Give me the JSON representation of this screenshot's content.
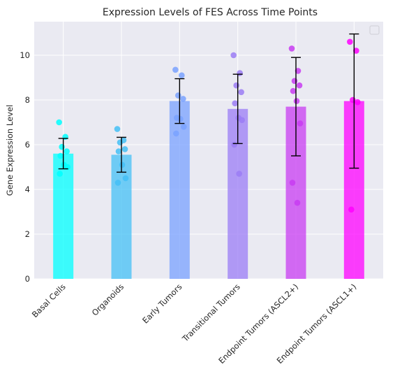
{
  "chart_data": {
    "type": "bar",
    "title": "Expression Levels of FES Across Time Points",
    "xlabel": "",
    "ylabel": "Gene Expression Level",
    "ylim": [
      0,
      11.5
    ],
    "yticks": [
      0,
      2,
      4,
      6,
      8,
      10
    ],
    "grid": true,
    "legend": "top-right",
    "categories": [
      "Basal Cells",
      "Organoids",
      "Early Tumors",
      "Transitional Tumors",
      "Endpoint Tumors (ASCL2+)",
      "Endpoint Tumors (ASCL1+)"
    ],
    "values": [
      5.6,
      5.55,
      7.95,
      7.6,
      7.7,
      7.95
    ],
    "errors": [
      0.68,
      0.78,
      1.0,
      1.55,
      2.2,
      3.0
    ],
    "colors": [
      "#00ffff",
      "#44c0f6",
      "#7aa2ff",
      "#9b7cf5",
      "#c83cf2",
      "#ff00ff"
    ],
    "points": [
      [
        7.0,
        6.35,
        5.9,
        5.7,
        5.5,
        5.1,
        5.0,
        4.7
      ],
      [
        6.7,
        6.2,
        6.1,
        5.8,
        5.7,
        5.1,
        4.5,
        4.3
      ],
      [
        9.35,
        9.1,
        8.2,
        8.05,
        7.2,
        7.15,
        6.8,
        6.5
      ],
      [
        10.0,
        9.2,
        8.65,
        8.35,
        7.85,
        7.2,
        7.1,
        6.0,
        4.7
      ],
      [
        10.3,
        9.3,
        8.85,
        8.65,
        8.4,
        7.95,
        6.95,
        4.3,
        3.4
      ],
      [
        10.6,
        10.2,
        8.0,
        7.9,
        3.1
      ]
    ]
  }
}
